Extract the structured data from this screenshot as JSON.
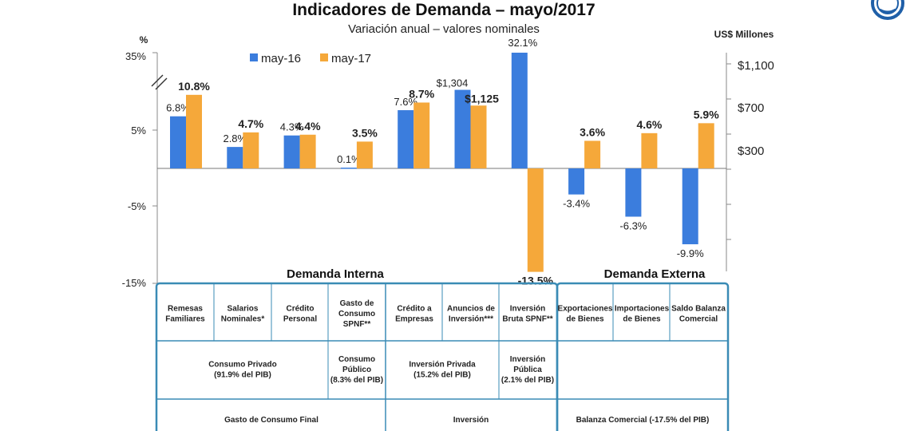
{
  "chart_data": {
    "type": "bar",
    "title": "Indicadores de Demanda – mayo/2017",
    "subtitle": "Variación anual – valores nominales",
    "left_axis": {
      "unit": "%",
      "ticks": [
        "35%",
        "5%",
        "-5%",
        "-15%"
      ]
    },
    "right_axis": {
      "unit": "US$ Millones",
      "ticks": [
        "$1,100",
        "$700",
        "$300"
      ]
    },
    "legend_position": "top-left",
    "colors": {
      "may-16": "#3B7DDD",
      "may-17": "#F5A83A"
    },
    "series": [
      {
        "name": "may-16",
        "values": [
          6.8,
          2.8,
          4.3,
          0.1,
          7.6,
          1304,
          32.1,
          -3.4,
          -6.3,
          -9.9
        ],
        "labels": [
          "6.8%",
          "2.8%",
          "4.3%",
          "0.1%",
          "7.6%",
          "$1,304",
          "32.1%",
          "-3.4%",
          "-6.3%",
          "-9.9%"
        ]
      },
      {
        "name": "may-17",
        "values": [
          10.8,
          4.7,
          4.4,
          3.5,
          8.7,
          1125,
          -13.5,
          3.6,
          4.6,
          5.9
        ],
        "labels": [
          "10.8%",
          "4.7%",
          "4.4%",
          "3.5%",
          "8.7%",
          "$1,125",
          "-13.5%",
          "3.6%",
          "4.6%",
          "5.9%"
        ]
      }
    ],
    "categories": [
      "Remesas Familiares",
      "Salarios Nominales*",
      "Crédito Personal",
      "Gasto de Consumo SPNF**",
      "Crédito a Empresas",
      "Anuncios de Inversión***",
      "Inversión Bruta SPNF**",
      "Exportaciones de Bienes",
      "Importaciones de Bienes",
      "Saldo Balanza Comercial"
    ]
  },
  "sections": {
    "interna": "Demanda Interna",
    "externa": "Demanda Externa"
  },
  "table": {
    "row1": [
      [
        "Remesas",
        "Familiares"
      ],
      [
        "Salarios",
        "Nominales*"
      ],
      [
        "Crédito",
        "Personal"
      ],
      [
        "Gasto de",
        "Consumo",
        "SPNF**"
      ],
      [
        "Crédito a",
        "Empresas"
      ],
      [
        "Anuncios de",
        "Inversión***"
      ],
      [
        "Inversión",
        "Bruta SPNF**"
      ],
      [
        "Exportaciones",
        "de Bienes"
      ],
      [
        "Importaciones",
        "de Bienes"
      ],
      [
        "Saldo Balanza",
        "Comercial"
      ]
    ],
    "row2": [
      [
        "Consumo Privado",
        "(91.9% del PIB)"
      ],
      [
        "Consumo",
        "Público",
        "(8.3% del PIB)"
      ],
      [
        "Inversión Privada",
        "(15.2% del PIB)"
      ],
      [
        "Inversión",
        "Pública",
        "(2.1% del PIB)"
      ]
    ],
    "row3": [
      "Gasto de Consumo Final",
      "Inversión",
      "Balanza Comercial (-17.5% del PIB)"
    ]
  }
}
